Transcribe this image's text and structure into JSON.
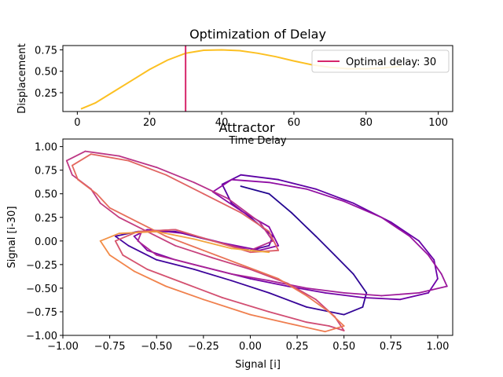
{
  "chart_data": [
    {
      "type": "line",
      "title": "Optimization of Delay",
      "xlabel": "Time Delay",
      "ylabel": "Displacement",
      "xlim": [
        -4,
        104
      ],
      "ylim": [
        0.03,
        0.8
      ],
      "xticks": [
        0,
        20,
        40,
        60,
        80,
        100
      ],
      "xtick_labels": [
        "0",
        "20",
        "40",
        "60",
        "80",
        "100"
      ],
      "yticks": [
        0.25,
        0.5,
        0.75
      ],
      "ytick_labels": [
        "0.25",
        "0.50",
        "0.75"
      ],
      "series": [
        {
          "color": "#fcc022",
          "x": [
            1,
            5,
            10,
            15,
            20,
            25,
            30,
            35,
            40,
            45,
            50,
            55,
            60,
            65,
            70,
            75,
            80,
            85,
            90
          ],
          "y": [
            0.06,
            0.13,
            0.26,
            0.39,
            0.52,
            0.63,
            0.71,
            0.745,
            0.75,
            0.74,
            0.71,
            0.67,
            0.62,
            0.575,
            0.545,
            0.53,
            0.53,
            0.54,
            0.56
          ]
        }
      ],
      "vline": {
        "x": 30,
        "color": "#d6266b"
      },
      "legend": {
        "label": "Optimal delay: 30",
        "color": "#d6266b",
        "position": "upper right"
      }
    },
    {
      "type": "line",
      "title": "Attractor",
      "xlabel": "Signal [i]",
      "ylabel": "Signal [i-30]",
      "xlim": [
        -1.0,
        1.08
      ],
      "ylim": [
        -1.0,
        1.08
      ],
      "xticks": [
        -1.0,
        -0.75,
        -0.5,
        -0.25,
        0.0,
        0.25,
        0.5,
        0.75,
        1.0
      ],
      "xtick_labels": [
        "−1.00",
        "−0.75",
        "−0.50",
        "−0.25",
        "0.00",
        "0.25",
        "0.50",
        "0.75",
        "1.00"
      ],
      "yticks": [
        -1.0,
        -0.75,
        -0.5,
        -0.25,
        0.0,
        0.25,
        0.5,
        0.75,
        1.0
      ],
      "ytick_labels": [
        "−1.00",
        "−0.75",
        "−0.50",
        "−0.25",
        "0.00",
        "0.25",
        "0.50",
        "0.75",
        "1.00"
      ],
      "colormap": "plasma",
      "colormap_range": [
        0.05,
        0.92
      ],
      "trajectory": [
        [
          -0.05,
          0.58
        ],
        [
          0.1,
          0.5
        ],
        [
          0.22,
          0.3
        ],
        [
          0.35,
          0.05
        ],
        [
          0.45,
          -0.15
        ],
        [
          0.55,
          -0.35
        ],
        [
          0.62,
          -0.55
        ],
        [
          0.6,
          -0.7
        ],
        [
          0.5,
          -0.78
        ],
        [
          0.3,
          -0.7
        ],
        [
          0.1,
          -0.55
        ],
        [
          -0.1,
          -0.42
        ],
        [
          -0.3,
          -0.3
        ],
        [
          -0.5,
          -0.2
        ],
        [
          -0.65,
          -0.05
        ],
        [
          -0.72,
          0.05
        ],
        [
          -0.6,
          0.1
        ],
        [
          -0.4,
          0.1
        ],
        [
          -0.2,
          0.0
        ],
        [
          0.0,
          -0.1
        ],
        [
          0.1,
          -0.05
        ],
        [
          0.12,
          0.05
        ],
        [
          0.0,
          0.25
        ],
        [
          -0.1,
          0.4
        ],
        [
          -0.15,
          0.6
        ],
        [
          -0.05,
          0.7
        ],
        [
          0.15,
          0.65
        ],
        [
          0.35,
          0.55
        ],
        [
          0.55,
          0.4
        ],
        [
          0.75,
          0.2
        ],
        [
          0.9,
          0.0
        ],
        [
          0.98,
          -0.2
        ],
        [
          1.0,
          -0.4
        ],
        [
          0.95,
          -0.55
        ],
        [
          0.8,
          -0.62
        ],
        [
          0.6,
          -0.6
        ],
        [
          0.4,
          -0.55
        ],
        [
          0.2,
          -0.48
        ],
        [
          0.0,
          -0.4
        ],
        [
          -0.2,
          -0.3
        ],
        [
          -0.4,
          -0.2
        ],
        [
          -0.55,
          -0.1
        ],
        [
          -0.62,
          0.05
        ],
        [
          -0.55,
          0.12
        ],
        [
          -0.35,
          0.08
        ],
        [
          -0.15,
          -0.02
        ],
        [
          0.05,
          -0.1
        ],
        [
          0.15,
          -0.05
        ],
        [
          0.1,
          0.15
        ],
        [
          -0.05,
          0.32
        ],
        [
          -0.2,
          0.52
        ],
        [
          -0.1,
          0.65
        ],
        [
          0.1,
          0.62
        ],
        [
          0.3,
          0.55
        ],
        [
          0.5,
          0.42
        ],
        [
          0.7,
          0.25
        ],
        [
          0.85,
          0.05
        ],
        [
          0.95,
          -0.15
        ],
        [
          1.02,
          -0.35
        ],
        [
          1.05,
          -0.48
        ],
        [
          0.9,
          -0.55
        ],
        [
          0.7,
          -0.58
        ],
        [
          0.5,
          -0.55
        ],
        [
          0.3,
          -0.5
        ],
        [
          0.1,
          -0.42
        ],
        [
          -0.1,
          -0.35
        ],
        [
          -0.3,
          -0.25
        ],
        [
          -0.5,
          -0.15
        ],
        [
          -0.6,
          0.0
        ],
        [
          -0.58,
          0.1
        ],
        [
          -0.4,
          0.12
        ],
        [
          -0.2,
          0.0
        ],
        [
          0.0,
          -0.1
        ],
        [
          0.12,
          0.0
        ],
        [
          0.05,
          0.2
        ],
        [
          -0.12,
          0.45
        ],
        [
          -0.3,
          0.62
        ],
        [
          -0.5,
          0.78
        ],
        [
          -0.7,
          0.9
        ],
        [
          -0.88,
          0.95
        ],
        [
          -0.98,
          0.85
        ],
        [
          -0.95,
          0.7
        ],
        [
          -0.85,
          0.55
        ],
        [
          -0.8,
          0.4
        ],
        [
          -0.7,
          0.25
        ],
        [
          -0.55,
          0.1
        ],
        [
          -0.4,
          -0.05
        ],
        [
          -0.2,
          -0.18
        ],
        [
          0.0,
          -0.3
        ],
        [
          0.2,
          -0.45
        ],
        [
          0.35,
          -0.62
        ],
        [
          0.45,
          -0.8
        ],
        [
          0.5,
          -0.95
        ],
        [
          0.42,
          -0.9
        ],
        [
          0.3,
          -0.86
        ],
        [
          0.1,
          -0.75
        ],
        [
          -0.15,
          -0.6
        ],
        [
          -0.35,
          -0.45
        ],
        [
          -0.55,
          -0.3
        ],
        [
          -0.68,
          -0.15
        ],
        [
          -0.72,
          0.0
        ],
        [
          -0.6,
          0.1
        ],
        [
          -0.4,
          0.12
        ],
        [
          -0.2,
          0.0
        ],
        [
          0.0,
          -0.12
        ],
        [
          0.15,
          -0.1
        ],
        [
          0.1,
          0.1
        ],
        [
          -0.05,
          0.3
        ],
        [
          -0.25,
          0.5
        ],
        [
          -0.45,
          0.7
        ],
        [
          -0.65,
          0.85
        ],
        [
          -0.85,
          0.92
        ],
        [
          -0.95,
          0.8
        ],
        [
          -0.92,
          0.65
        ],
        [
          -0.82,
          0.5
        ],
        [
          -0.75,
          0.35
        ],
        [
          -0.6,
          0.2
        ],
        [
          -0.45,
          0.05
        ],
        [
          -0.25,
          -0.1
        ],
        [
          -0.05,
          -0.25
        ],
        [
          0.15,
          -0.4
        ],
        [
          0.3,
          -0.58
        ],
        [
          0.42,
          -0.75
        ],
        [
          0.5,
          -0.9
        ],
        [
          0.4,
          -0.96
        ],
        [
          0.22,
          -0.88
        ],
        [
          0.0,
          -0.78
        ],
        [
          -0.25,
          -0.62
        ],
        [
          -0.45,
          -0.48
        ],
        [
          -0.62,
          -0.32
        ],
        [
          -0.75,
          -0.15
        ],
        [
          -0.8,
          0.0
        ],
        [
          -0.7,
          0.08
        ],
        [
          -0.5,
          0.1
        ],
        [
          -0.3,
          0.02
        ],
        [
          -0.1,
          -0.08
        ],
        [
          0.1,
          -0.12
        ]
      ]
    }
  ]
}
